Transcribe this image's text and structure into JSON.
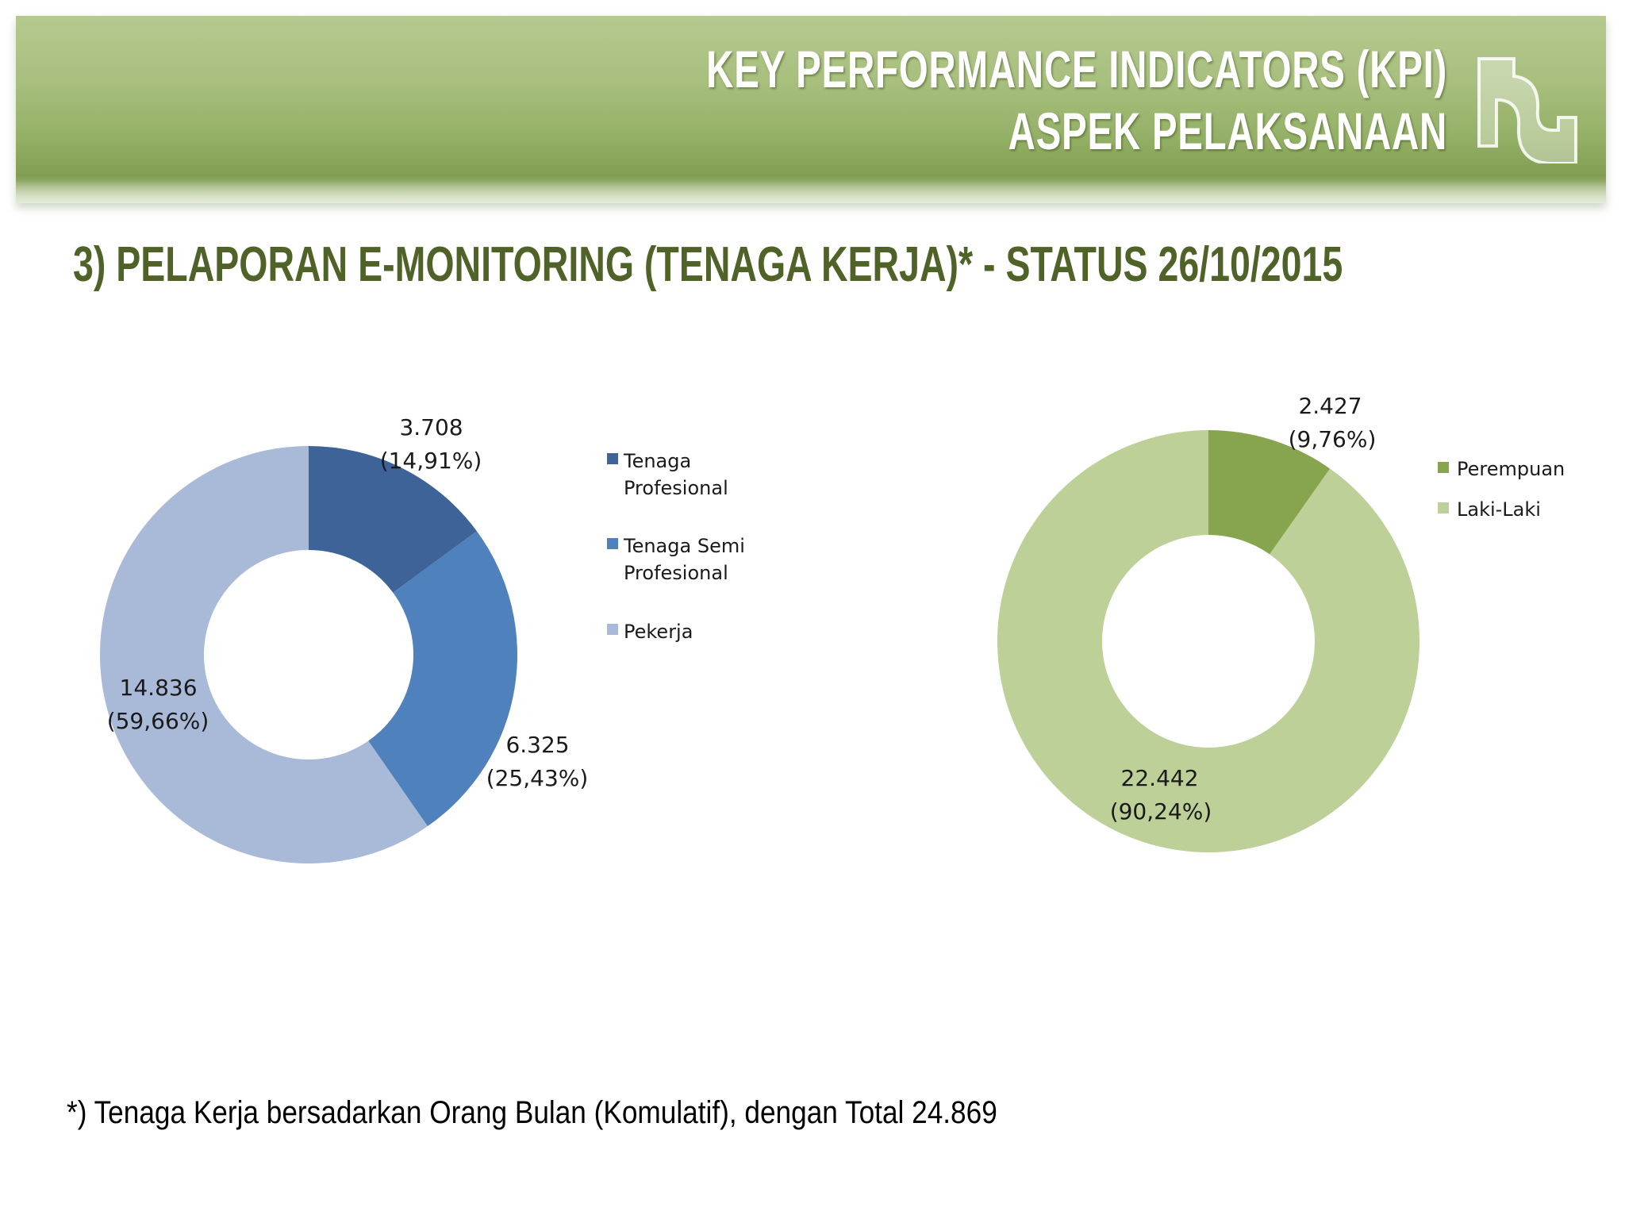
{
  "header": {
    "title_line1": "KEY PERFORMANCE INDICATORS (KPI)",
    "title_line2": "ASPEK PELAKSANAAN"
  },
  "subtitle": "3) PELAPORAN E-MONITORING (TENAGA KERJA)* - STATUS 26/10/2015",
  "footnote": "*) Tenaga Kerja bersadarkan Orang Bulan (Komulatif), dengan Total 24.869",
  "chart_data": [
    {
      "type": "pie",
      "donut": true,
      "legend_position": "right",
      "categories": [
        "Tenaga Profesional",
        "Tenaga Semi Profesional",
        "Pekerja"
      ],
      "legend_labels": [
        [
          "Tenaga",
          "Profesional"
        ],
        [
          "Tenaga Semi",
          "Profesional"
        ],
        [
          "Pekerja"
        ]
      ],
      "values": [
        3708,
        6325,
        14836
      ],
      "value_labels": [
        "3.708",
        "6.325",
        "14.836"
      ],
      "percent_labels": [
        "(14,91%)",
        "(25,43%)",
        "(59,66%)"
      ],
      "colors": [
        "#3e6398",
        "#4f81bd",
        "#a9b9d8"
      ]
    },
    {
      "type": "pie",
      "donut": true,
      "legend_position": "right",
      "categories": [
        "Perempuan",
        "Laki-Laki"
      ],
      "legend_labels": [
        [
          "Perempuan"
        ],
        [
          "Laki-Laki"
        ]
      ],
      "values": [
        2427,
        22442
      ],
      "value_labels": [
        "2.427",
        "22.442"
      ],
      "percent_labels": [
        "(9,76%)",
        "(90,24%)"
      ],
      "colors": [
        "#87a54f",
        "#bdd098"
      ]
    }
  ]
}
